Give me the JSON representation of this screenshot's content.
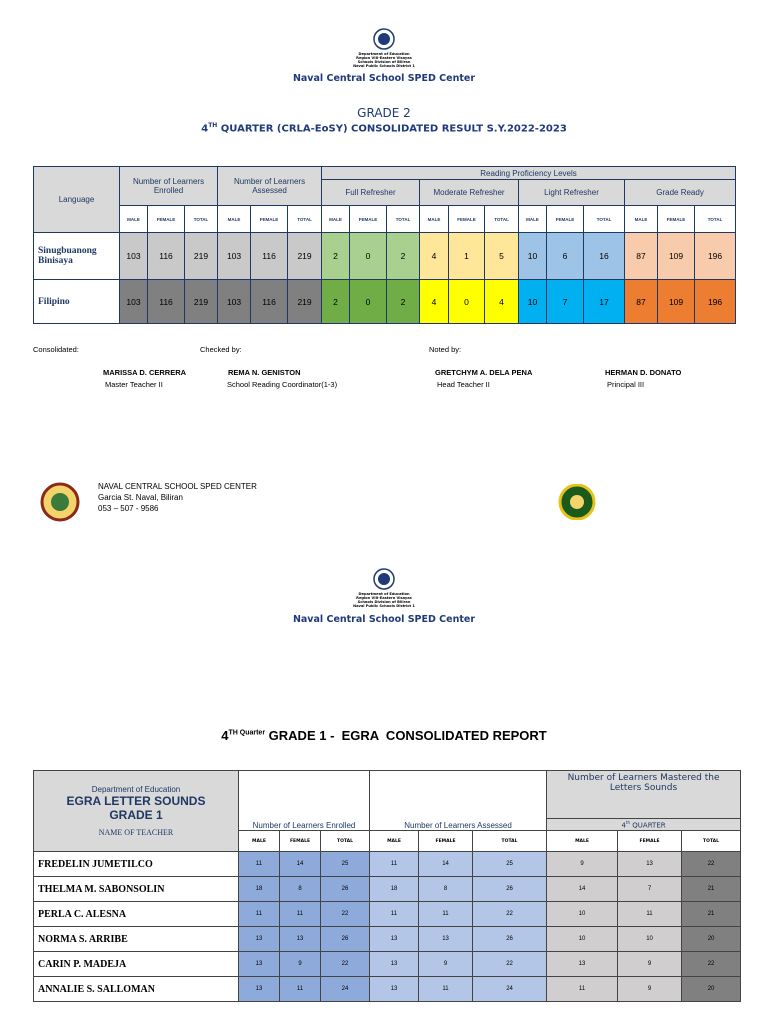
{
  "page1": {
    "header": {
      "agency_lines": [
        "Department of Education",
        "Region VIII-Eastern Visayas",
        "Schools Division of Biliran",
        "Naval Public Schools District 1"
      ],
      "school": "Naval Central School SPED Center"
    },
    "title": "GRADE 2",
    "subtitle": {
      "ordinal": "4",
      "suffix": "TH",
      "text": "QUARTER (CRLA-EoSY) CONSOLIDATED RESULT S.Y.2022-2023"
    },
    "table": {
      "language_header": "Language",
      "enrolled_header": "Number of Learners Enrolled",
      "assessed_header": "Number of Learners Assessed",
      "levels_header": "Reading Proficiency Levels",
      "levels": [
        "Full Refresher",
        "Moderate Refresher",
        "Light Refresher",
        "Grade Ready"
      ],
      "sub_headers": [
        "MALE",
        "FEMALE",
        "TOTAL"
      ],
      "rows": [
        {
          "language": "Sinugbuanong Binisaya",
          "values": [
            103,
            116,
            219,
            103,
            116,
            219,
            2,
            0,
            2,
            4,
            1,
            5,
            10,
            6,
            16,
            87,
            109,
            196
          ]
        },
        {
          "language": "Filipino",
          "values": [
            103,
            116,
            219,
            103,
            116,
            219,
            2,
            0,
            2,
            4,
            0,
            4,
            10,
            7,
            17,
            87,
            109,
            196
          ]
        }
      ]
    },
    "signatures": {
      "labels": [
        "Consolidated:",
        "Checked by:",
        "Noted by:"
      ],
      "people": [
        {
          "name": "MARISSA D. CERRERA",
          "position": "Master Teacher II"
        },
        {
          "name": "REMA N. GENISTON",
          "position": "School Reading Coordinator(1-3)"
        },
        {
          "name": "GRETCHYM A. DELA PENA",
          "position": "Head Teacher II"
        },
        {
          "name": "HERMAN D. DONATO",
          "position": "Principal III"
        }
      ]
    },
    "footer": {
      "lines": [
        "NAVAL CENTRAL SCHOOL SPED CENTER",
        "Garcia St. Naval, Biliran",
        "053 – 507 - 9586"
      ]
    }
  },
  "page2": {
    "header": {
      "agency_lines": [
        "Department of Education",
        "Region VIII-Eastern Visayas",
        "Schools Division of Biliran",
        "Naval Public Schools District 1"
      ],
      "school": "Naval Central School SPED Center"
    },
    "title": {
      "ordinal": "4",
      "suffix": "TH Quarter",
      "text": "GRADE 1 -  EGRA  CONSOLIDATED REPORT"
    },
    "table": {
      "header_lines": [
        "Department of Education",
        "EGRA LETTER SOUNDS",
        "GRADE 1"
      ],
      "name_header": "NAME OF TEACHER",
      "enrolled_header": "Number of Learners Enrolled",
      "assessed_header": "Number of Learners Assessed",
      "mastered_header": "Number of Learners Mastered the Letters Sounds",
      "quarter": {
        "ordinal": "4",
        "suffix": "th",
        "text": "QUARTER"
      },
      "sub_headers": [
        "MALE",
        "FEMALE",
        "TOTAL"
      ],
      "rows": [
        {
          "teacher": "FREDELIN JUMETILCO",
          "values": [
            11,
            14,
            25,
            11,
            14,
            25,
            9,
            13,
            22
          ]
        },
        {
          "teacher": "THELMA M. SABONSOLIN",
          "values": [
            18,
            8,
            26,
            18,
            8,
            26,
            14,
            7,
            21
          ]
        },
        {
          "teacher": "PERLA C. ALESNA",
          "values": [
            11,
            11,
            22,
            11,
            11,
            22,
            10,
            11,
            21
          ]
        },
        {
          "teacher": "NORMA S. ARRIBE",
          "values": [
            13,
            13,
            26,
            13,
            13,
            26,
            10,
            10,
            20
          ]
        },
        {
          "teacher": "CARIN P. MADEJA",
          "values": [
            13,
            9,
            22,
            13,
            9,
            22,
            13,
            9,
            22
          ]
        },
        {
          "teacher": "ANNALIE S. SALLOMAN",
          "values": [
            13,
            11,
            24,
            13,
            11,
            24,
            11,
            9,
            20
          ]
        }
      ]
    }
  }
}
